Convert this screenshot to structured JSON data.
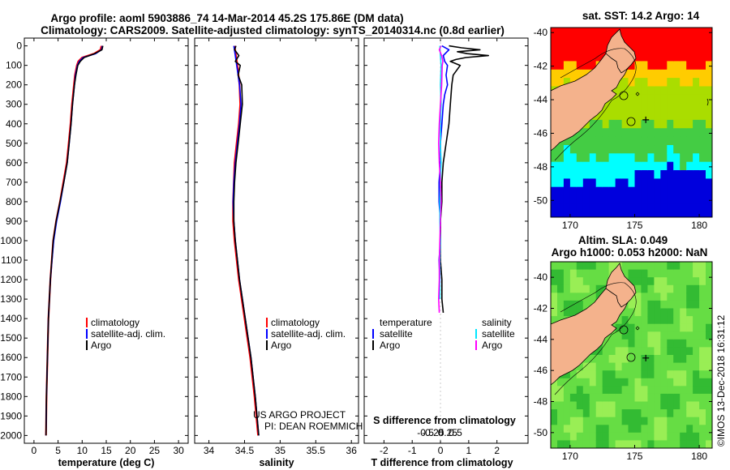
{
  "title_line1": "Argo profile: aoml 5903886_74 14-Mar-2014 45.2S 175.86E (DM data)",
  "title_line2": "Climatology: CARS2009. Satellite-adjusted climatology: synTS_20140314.nc (0.8d earlier)",
  "credit_line1": "US ARGO PROJECT",
  "credit_line2": "PI: DEAN ROEMMICH",
  "timestamp": "©IMOS 13-Dec-2018 16:31:12",
  "colors": {
    "climatology": "#ff0000",
    "satellite": "#0000ff",
    "argo": "#000000",
    "satellite_s": "#00e6ff",
    "argo_s": "#ff00ff"
  },
  "chart_data": [
    {
      "type": "line",
      "title": "",
      "xlabel": "temperature (deg C)",
      "ylabel": "",
      "xlim": [
        -2,
        32
      ],
      "ylim": [
        2040,
        -40
      ],
      "xticks": [
        0,
        5,
        10,
        15,
        20,
        25,
        30
      ],
      "xtick_labels": [
        "0",
        "5",
        "10",
        "15",
        "20",
        "25",
        "30"
      ],
      "yticks": [
        0,
        100,
        200,
        300,
        400,
        500,
        600,
        700,
        800,
        900,
        1000,
        1100,
        1200,
        1300,
        1400,
        1500,
        1600,
        1700,
        1800,
        1900,
        2000
      ],
      "ytick_labels": [
        "0",
        "100",
        "200",
        "300",
        "400",
        "500",
        "600",
        "700",
        "800",
        "900",
        "1000",
        "1100",
        "1200",
        "1300",
        "1400",
        "1500",
        "1600",
        "1700",
        "1800",
        "1900",
        "2000"
      ],
      "legend": [
        "climatology",
        "satellite-adj. clim.",
        "Argo"
      ],
      "series": [
        {
          "name": "climatology",
          "depth": [
            0,
            20,
            40,
            60,
            80,
            100,
            150,
            200,
            300,
            400,
            500,
            600,
            700,
            800,
            900,
            1000,
            1200,
            1400,
            1600,
            1800,
            2000
          ],
          "values": [
            14.0,
            13.8,
            12.5,
            10.0,
            9.2,
            8.9,
            8.5,
            8.3,
            7.9,
            7.6,
            7.2,
            6.8,
            6.1,
            5.4,
            4.6,
            4.0,
            3.4,
            3.0,
            2.8,
            2.6,
            2.5
          ]
        },
        {
          "name": "satellite-adj. clim.",
          "depth": [
            0,
            20,
            40,
            60,
            80,
            100,
            150,
            200,
            300,
            400,
            500,
            600,
            700,
            800,
            900,
            1000,
            1200,
            1400,
            1600,
            1800,
            2000
          ],
          "values": [
            14.2,
            14.0,
            12.8,
            10.2,
            9.4,
            9.0,
            8.6,
            8.4,
            8.0,
            7.7,
            7.3,
            6.9,
            6.2,
            5.5,
            4.7,
            4.1,
            3.4,
            3.0,
            2.8,
            2.6,
            2.5
          ]
        },
        {
          "name": "Argo",
          "depth": [
            0,
            20,
            40,
            60,
            80,
            100,
            150,
            200,
            300,
            400,
            500,
            600,
            700,
            800,
            900,
            1000,
            1200,
            1400,
            1600,
            1800,
            2000
          ],
          "values": [
            14.3,
            14.1,
            12.6,
            10.4,
            9.6,
            9.1,
            8.7,
            8.4,
            8.0,
            7.7,
            7.3,
            6.9,
            6.2,
            5.4,
            4.6,
            4.0,
            3.4,
            3.0,
            2.8,
            2.6,
            2.5
          ]
        }
      ]
    },
    {
      "type": "line",
      "title": "",
      "xlabel": "salinity",
      "ylabel": "",
      "xlim": [
        33.8,
        36.1
      ],
      "ylim": [
        2040,
        -40
      ],
      "xticks": [
        34,
        34.5,
        35,
        35.5,
        36
      ],
      "xtick_labels": [
        "34",
        "34.5",
        "35",
        "35.5",
        "36"
      ],
      "legend": [
        "climatology",
        "satellite-adj. clim.",
        "Argo"
      ],
      "series": [
        {
          "name": "climatology",
          "depth": [
            0,
            50,
            100,
            200,
            300,
            400,
            500,
            600,
            700,
            800,
            900,
            1000,
            1200,
            1400,
            1600,
            1800,
            2000
          ],
          "values": [
            34.36,
            34.38,
            34.4,
            34.43,
            34.44,
            34.42,
            34.39,
            34.36,
            34.35,
            34.34,
            34.34,
            34.36,
            34.42,
            34.5,
            34.58,
            34.64,
            34.69
          ]
        },
        {
          "name": "satellite-adj. clim.",
          "depth": [
            0,
            50,
            100,
            200,
            300,
            400,
            500,
            600,
            700,
            800,
            900,
            1000,
            1200,
            1400,
            1600,
            1800,
            2000
          ],
          "values": [
            34.35,
            34.37,
            34.39,
            34.43,
            34.45,
            34.43,
            34.4,
            34.37,
            34.35,
            34.34,
            34.35,
            34.37,
            34.43,
            34.51,
            34.59,
            34.65,
            34.7
          ]
        },
        {
          "name": "Argo",
          "depth": [
            0,
            20,
            50,
            80,
            100,
            150,
            200,
            300,
            400,
            500,
            600,
            700,
            800,
            900,
            1000,
            1200,
            1400,
            1600,
            1800,
            2000
          ],
          "values": [
            34.38,
            34.36,
            34.42,
            34.37,
            34.44,
            34.41,
            34.46,
            34.47,
            34.44,
            34.41,
            34.38,
            34.36,
            34.35,
            34.35,
            34.37,
            34.43,
            34.51,
            34.59,
            34.65,
            34.7
          ]
        }
      ]
    },
    {
      "type": "line",
      "title": "",
      "xlabel": "T difference from climatology",
      "xlabel2": "S difference from climatology",
      "xlim": [
        -2.7,
        3.1
      ],
      "ylim": [
        2040,
        -40
      ],
      "xticks": [
        -2,
        -1,
        0,
        1,
        2
      ],
      "xtick_labels": [
        "-2",
        "-1",
        "0",
        "1",
        "2"
      ],
      "sxticks": [
        -0.5,
        -0.25,
        0,
        0.25,
        0.5
      ],
      "sxtick_labels": [
        "-0.5",
        "-0.25",
        "0",
        "0.25",
        "0.5"
      ],
      "legend_t_heading": "temperature",
      "legend_s_heading": "salinity",
      "legend": [
        "satellite",
        "Argo",
        "satellite",
        "Argo"
      ],
      "series": [
        {
          "name": "T satellite",
          "depth": [
            0,
            20,
            50,
            80,
            100,
            150,
            200,
            250,
            300,
            400,
            500,
            600,
            700,
            800,
            900,
            1000,
            1100,
            1200,
            1300
          ],
          "values": [
            0.05,
            0.3,
            0.1,
            0.15,
            0.25,
            0.2,
            0.25,
            0.15,
            0.1,
            0.05,
            0.0,
            0.0,
            -0.05,
            -0.05,
            0.0,
            0.0,
            -0.05,
            -0.02,
            -0.05
          ]
        },
        {
          "name": "T Argo",
          "depth": [
            0,
            10,
            20,
            30,
            40,
            50,
            60,
            70,
            80,
            100,
            150,
            200,
            300,
            400,
            500,
            600,
            700,
            800,
            900,
            1000,
            1100,
            1200,
            1300,
            1370
          ],
          "values": [
            0.3,
            0.75,
            1.4,
            0.6,
            0.95,
            1.7,
            0.9,
            0.55,
            0.35,
            0.7,
            0.45,
            0.4,
            0.35,
            0.3,
            0.2,
            0.1,
            0.05,
            0.05,
            0.0,
            0.0,
            0.0,
            0.05,
            0.05,
            0.1
          ]
        },
        {
          "name": "S satellite",
          "depth": [
            0,
            50,
            100,
            200,
            300,
            400,
            500,
            600,
            700,
            800,
            900,
            1000,
            1100,
            1200,
            1300
          ],
          "values": [
            -0.01,
            0.0,
            0.01,
            0.0,
            0.01,
            0.0,
            0.0,
            0.01,
            0.0,
            -0.01,
            -0.01,
            0.0,
            -0.01,
            -0.01,
            -0.01
          ]
        },
        {
          "name": "S Argo",
          "depth": [
            0,
            20,
            50,
            80,
            100,
            200,
            300,
            400,
            500,
            600,
            700,
            800,
            900,
            1000,
            1100,
            1200,
            1300,
            1370
          ],
          "values": [
            0.01,
            -0.02,
            0.02,
            0.04,
            0.03,
            0.02,
            0.0,
            -0.02,
            -0.03,
            -0.02,
            0.0,
            0.01,
            0.0,
            -0.01,
            -0.02,
            -0.02,
            -0.03,
            -0.02
          ]
        }
      ]
    },
    {
      "type": "heatmap",
      "title": "sat. SST: 14.2  Argo: 14",
      "xlim": [
        168.5,
        181
      ],
      "ylim": [
        -51,
        -39.7
      ],
      "xticks": [
        170,
        175,
        180
      ],
      "xtick_labels": [
        "170",
        "175",
        "180"
      ],
      "yticks": [
        -40,
        -42,
        -44,
        -46,
        -48,
        -50
      ],
      "ytick_labels": [
        "-40",
        "-42",
        "-44",
        "-46",
        "-48",
        "-50"
      ],
      "colors": [
        "#ff0000",
        "#ffcc00",
        "#aadd00",
        "#44cc44",
        "#00ffff",
        "#0000dd",
        "#f4b28c"
      ],
      "argo_position": [
        175.86,
        -45.2
      ]
    },
    {
      "type": "heatmap",
      "title": "Altim. SLA: 0.049",
      "subtitle": "Argo h1000: 0.053 h2000: NaN",
      "xlim": [
        168.5,
        181
      ],
      "ylim": [
        -51,
        -39
      ],
      "xticks": [
        170,
        175,
        180
      ],
      "xtick_labels": [
        "170",
        "175",
        "180"
      ],
      "yticks": [
        -40,
        -42,
        -44,
        -46,
        -48,
        -50
      ],
      "ytick_labels": [
        "-40",
        "-42",
        "-44",
        "-46",
        "-48",
        "-50"
      ],
      "colors": [
        "#33bb33",
        "#66dd44",
        "#99ee55",
        "#f4b28c"
      ],
      "argo_position": [
        175.86,
        -45.2
      ]
    }
  ]
}
